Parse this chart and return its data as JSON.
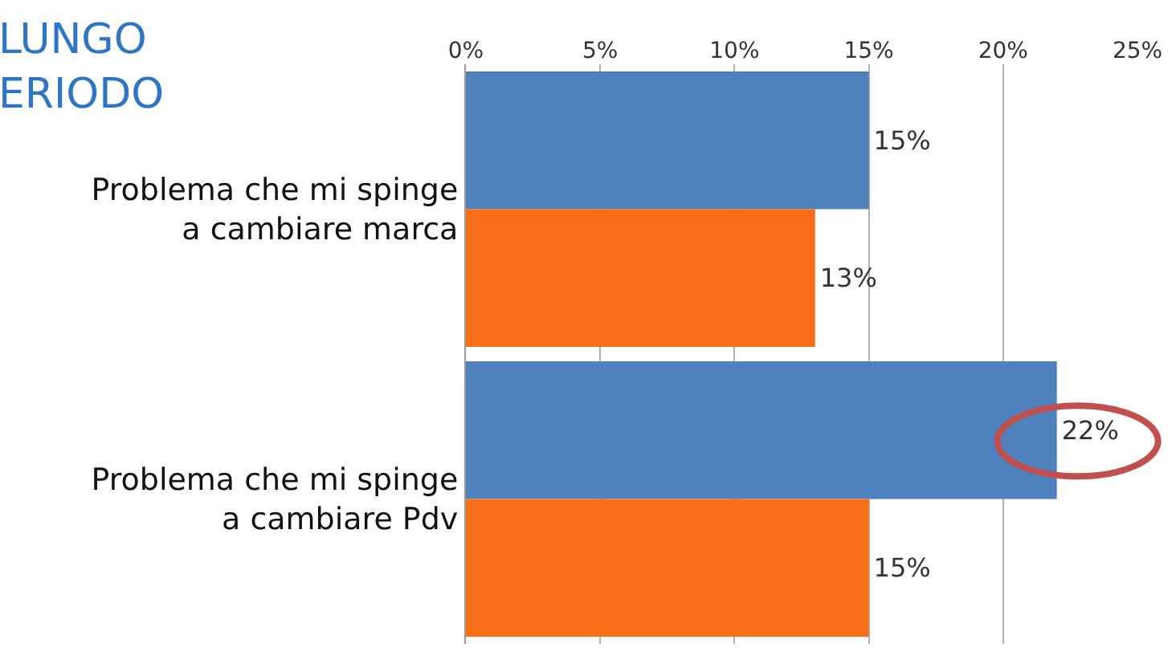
{
  "chart_data": {
    "type": "bar",
    "orientation": "horizontal",
    "title": "LUNGO\nERIODO",
    "categories": [
      "Problema che mi spinge a cambiare marca",
      "Problema che mi spinge a cambiare Pdv"
    ],
    "series": [
      {
        "color": "#4f81bd",
        "values": [
          15,
          22
        ],
        "value_labels": [
          "15%",
          "22%"
        ]
      },
      {
        "color": "#fa6d19",
        "values": [
          13,
          15
        ],
        "value_labels": [
          "13%",
          "15%"
        ]
      }
    ],
    "xlim": [
      0,
      25
    ],
    "xticks": [
      {
        "value": 0,
        "label": "0%"
      },
      {
        "value": 5,
        "label": "5%"
      },
      {
        "value": 10,
        "label": "10%"
      },
      {
        "value": 15,
        "label": "15%"
      },
      {
        "value": 20,
        "label": "20%"
      },
      {
        "value": 25,
        "label": "25%"
      }
    ],
    "grid": "x"
  }
}
